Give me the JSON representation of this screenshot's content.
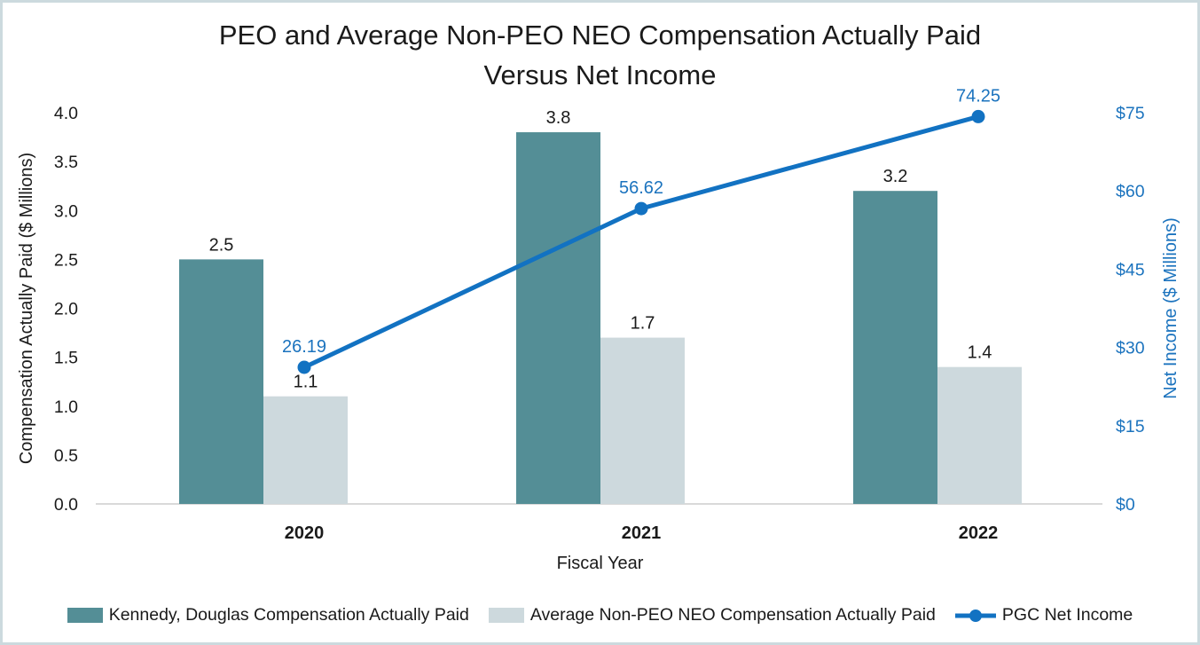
{
  "chart_data": {
    "type": "bar+line",
    "title_line1": "PEO and Average Non-PEO NEO Compensation Actually Paid",
    "title_line2": "Versus Net Income",
    "xlabel": "Fiscal Year",
    "categories": [
      "2020",
      "2021",
      "2022"
    ],
    "left_axis": {
      "label": "Compensation Actually Paid ($ Millions)",
      "ticks": [
        "0.0",
        "0.5",
        "1.0",
        "1.5",
        "2.0",
        "2.5",
        "3.0",
        "3.5",
        "4.0"
      ],
      "min": 0,
      "max": 4
    },
    "right_axis": {
      "label": "Net Income ($ Millions)",
      "ticks": [
        "$0",
        "$15",
        "$30",
        "$45",
        "$60",
        "$75"
      ],
      "min": 0,
      "max": 75
    },
    "series": [
      {
        "name": "Kennedy, Douglas Compensation Actually Paid",
        "type": "bar",
        "axis": "left",
        "color": "#548E96",
        "values": [
          2.5,
          3.8,
          3.2
        ],
        "labels": [
          "2.5",
          "3.8",
          "3.2"
        ]
      },
      {
        "name": "Average Non-PEO NEO Compensation Actually Paid",
        "type": "bar",
        "axis": "left",
        "color": "#CDD9DD",
        "values": [
          1.1,
          1.7,
          1.4
        ],
        "labels": [
          "1.1",
          "1.7",
          "1.4"
        ]
      },
      {
        "name": "PGC Net Income",
        "type": "line",
        "axis": "right",
        "color": "#1272C2",
        "values": [
          26.19,
          56.62,
          74.25
        ],
        "labels": [
          "26.19",
          "56.62",
          "74.25"
        ]
      }
    ],
    "colors": {
      "bar_teal": "#548E96",
      "bar_light": "#CDD9DD",
      "line_blue": "#1272C2",
      "blue_text": "#1B73BE",
      "axis_line": "#D9D9D9",
      "text": "#1A1A1A",
      "border": "#CCDADE"
    },
    "layout_hints": {
      "grid": "off",
      "legend_position": "bottom"
    }
  }
}
